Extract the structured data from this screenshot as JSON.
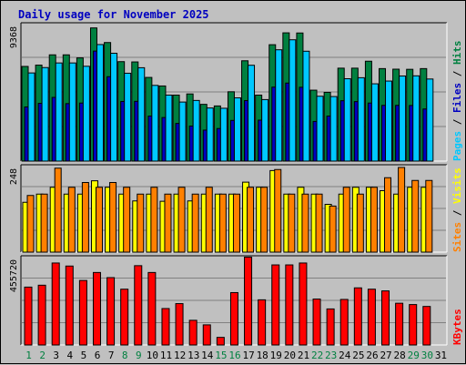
{
  "chart_data": {
    "type": "bar",
    "title": "Daily usage for November 2025",
    "categories": [
      "1",
      "2",
      "3",
      "4",
      "5",
      "6",
      "7",
      "8",
      "9",
      "10",
      "11",
      "12",
      "13",
      "14",
      "15",
      "16",
      "17",
      "18",
      "19",
      "20",
      "21",
      "22",
      "23",
      "24",
      "25",
      "26",
      "27",
      "28",
      "29",
      "30",
      "31"
    ],
    "weekend_days": [
      "1",
      "2",
      "8",
      "9",
      "15",
      "16",
      "22",
      "23",
      "29",
      "30"
    ],
    "panels": [
      {
        "name": "requests",
        "max_label": "9368",
        "ylim": [
          0,
          9368
        ],
        "legend": [
          {
            "text": "Pages",
            "color": "#00c8ff"
          },
          {
            "text": " / ",
            "color": "#000000"
          },
          {
            "text": "Files",
            "color": "#0000c0"
          },
          {
            "text": " / ",
            "color": "#000000"
          },
          {
            "text": "Hits",
            "color": "#008040"
          }
        ],
        "series": [
          {
            "name": "Hits",
            "color": "#008040",
            "values": [
              6540,
              6630,
              7340,
              7340,
              7130,
              9200,
              8190,
              6870,
              6850,
              5780,
              5190,
              4560,
              4640,
              3920,
              3810,
              4790,
              6930,
              4560,
              8040,
              8860,
              8850,
              4900,
              4750,
              6420,
              6420,
              6900,
              6390,
              6350,
              6340,
              6390,
              null
            ]
          },
          {
            "name": "Files",
            "color": "#0000c0",
            "values": [
              3740,
              3990,
              4400,
              3970,
              4010,
              7600,
              5830,
              4120,
              4130,
              3110,
              3010,
              2600,
              2420,
              2140,
              2250,
              2810,
              4180,
              2830,
              5110,
              5390,
              5100,
              2740,
              3110,
              4170,
              4110,
              4010,
              3850,
              3850,
              3840,
              3600,
              null
            ]
          },
          {
            "name": "Pages",
            "color": "#00c8ff",
            "values": [
              6090,
              6460,
              6780,
              6780,
              6550,
              8050,
              7450,
              6070,
              6450,
              5230,
              4560,
              4080,
              4190,
              3670,
              3650,
              4370,
              6620,
              4250,
              7690,
              8380,
              7590,
              4480,
              4460,
              5690,
              5760,
              5340,
              5530,
              5880,
              5890,
              5670,
              null
            ]
          }
        ]
      },
      {
        "name": "visits",
        "max_label": "248",
        "ylim": [
          0,
          248
        ],
        "legend": [
          {
            "text": "Sites",
            "color": "#ff8000"
          },
          {
            "text": " / ",
            "color": "#000000"
          },
          {
            "text": "Visits",
            "color": "#ffff00"
          }
        ],
        "series": [
          {
            "name": "Visits",
            "color": "#ffff00",
            "values": [
              146,
              170,
              190,
              170,
              170,
              209,
              190,
              170,
              150,
              170,
              149,
              170,
              150,
              170,
              170,
              170,
              205,
              190,
              239,
              170,
              190,
              170,
              140,
              170,
              190,
              190,
              180,
              170,
              190,
              190,
              null
            ]
          },
          {
            "name": "Sites",
            "color": "#ff8000",
            "values": [
              166,
              170,
              246,
              190,
              204,
              190,
              204,
              190,
              170,
              190,
              170,
              190,
              170,
              190,
              170,
              170,
              190,
              190,
              242,
              170,
              170,
              170,
              135,
              190,
              170,
              190,
              218,
              248,
              210,
              210,
              null
            ]
          }
        ]
      },
      {
        "name": "kbytes",
        "max_label": "455720",
        "ylim": [
          0,
          455720
        ],
        "legend": [
          {
            "text": "KBytes",
            "color": "#ff0000"
          }
        ],
        "series": [
          {
            "name": "KBytes",
            "color": "#ff0000",
            "values": [
              305000,
              315000,
              432000,
              416000,
              340000,
              382000,
              355000,
              294000,
              418000,
              382000,
              192000,
              218000,
              130000,
              106000,
              40000,
              276000,
              463000,
              238000,
              422000,
              422000,
              432000,
              242000,
              190000,
              240000,
              301000,
              294000,
              285000,
              220000,
              213000,
              203000,
              null
            ]
          }
        ]
      }
    ]
  }
}
